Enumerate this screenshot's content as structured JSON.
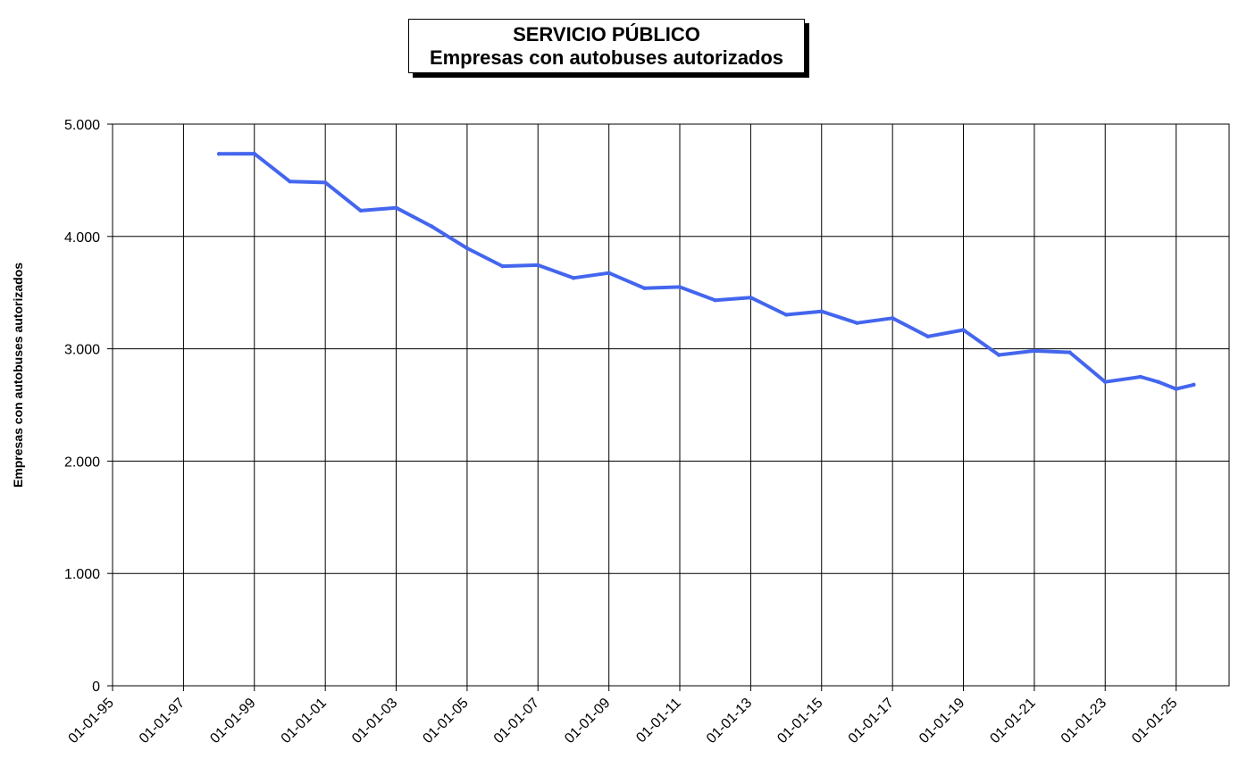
{
  "chart_data": {
    "type": "line",
    "title": "SERVICIO PÚBLICO",
    "subtitle": "Empresas con autobuses autorizados",
    "xlabel": "",
    "ylabel": "Empresas con autobuses autorizados",
    "xlim": [
      "1995-01-01",
      "2026-07-01"
    ],
    "ylim": [
      0,
      5000
    ],
    "grid": true,
    "line_color": "#4466EE",
    "y_ticks": [
      {
        "value": 0,
        "label": "0"
      },
      {
        "value": 1000,
        "label": "1.000"
      },
      {
        "value": 2000,
        "label": "2.000"
      },
      {
        "value": 3000,
        "label": "3.000"
      },
      {
        "value": 4000,
        "label": "4.000"
      },
      {
        "value": 5000,
        "label": "5.000"
      }
    ],
    "x_ticks": [
      {
        "value": "1995-01-01",
        "label": "01-01-95"
      },
      {
        "value": "1997-01-01",
        "label": "01-01-97"
      },
      {
        "value": "1999-01-01",
        "label": "01-01-99"
      },
      {
        "value": "2001-01-01",
        "label": "01-01-01"
      },
      {
        "value": "2003-01-01",
        "label": "01-01-03"
      },
      {
        "value": "2005-01-01",
        "label": "01-01-05"
      },
      {
        "value": "2007-01-01",
        "label": "01-01-07"
      },
      {
        "value": "2009-01-01",
        "label": "01-01-09"
      },
      {
        "value": "2011-01-01",
        "label": "01-01-11"
      },
      {
        "value": "2013-01-01",
        "label": "01-01-13"
      },
      {
        "value": "2015-01-01",
        "label": "01-01-15"
      },
      {
        "value": "2017-01-01",
        "label": "01-01-17"
      },
      {
        "value": "2019-01-01",
        "label": "01-01-19"
      },
      {
        "value": "2021-01-01",
        "label": "01-01-21"
      },
      {
        "value": "2023-01-01",
        "label": "01-01-23"
      },
      {
        "value": "2025-01-01",
        "label": "01-01-25"
      }
    ],
    "series": [
      {
        "x": [
          "1998-01-01",
          "1999-01-01",
          "2000-01-01",
          "2001-01-01",
          "2002-01-01",
          "2003-01-01",
          "2004-01-01",
          "2005-01-01",
          "2006-01-01",
          "2007-01-01",
          "2008-01-01",
          "2009-01-01",
          "2010-01-01",
          "2011-01-01",
          "2012-01-01",
          "2013-01-01",
          "2014-01-01",
          "2015-01-01",
          "2016-01-01",
          "2017-01-01",
          "2018-01-01",
          "2019-01-01",
          "2020-01-01",
          "2021-01-01",
          "2022-01-01",
          "2023-01-01",
          "2024-01-01",
          "2024-07-01",
          "2025-01-01",
          "2025-07-01"
        ],
        "values": [
          4735,
          4737,
          4490,
          4480,
          4230,
          4255,
          4090,
          3895,
          3735,
          3745,
          3630,
          3675,
          3540,
          3550,
          3432,
          3456,
          3303,
          3333,
          3230,
          3273,
          3110,
          3168,
          2945,
          2982,
          2968,
          2705,
          2750,
          2705,
          2642,
          2680
        ]
      }
    ]
  }
}
